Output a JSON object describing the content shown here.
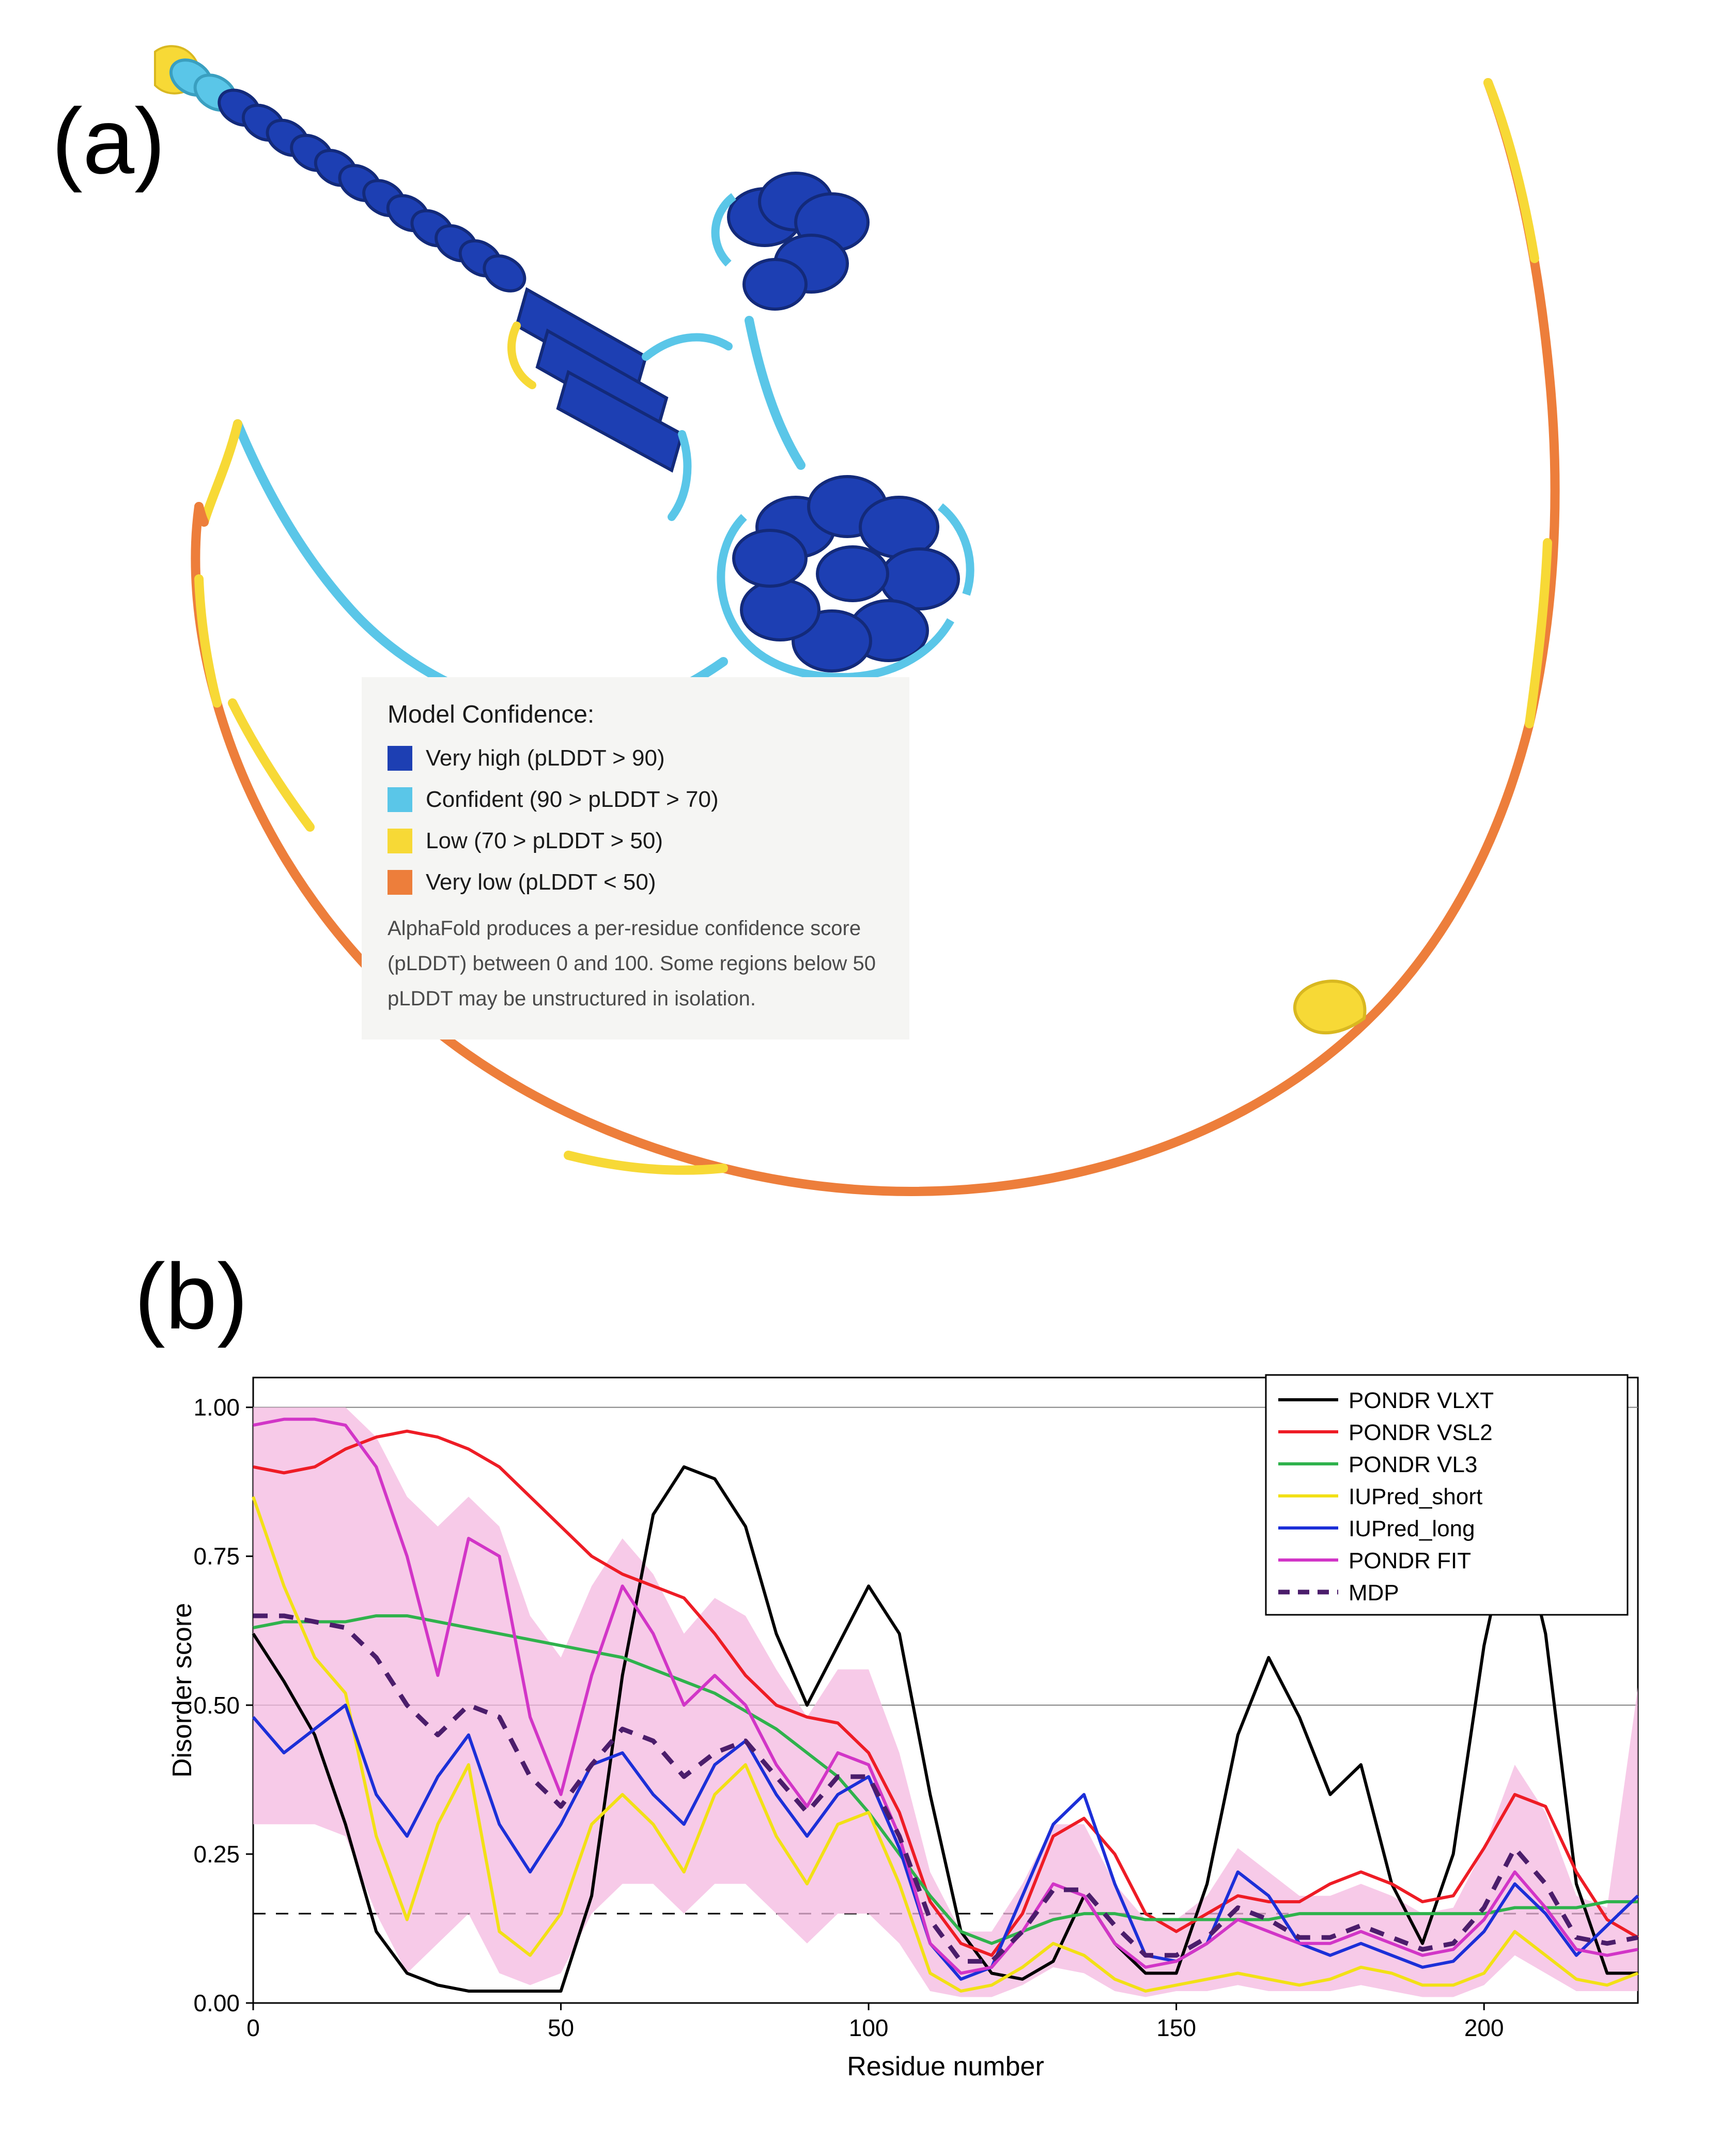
{
  "panel_a": {
    "label": "(a)",
    "legend": {
      "title": "Model Confidence:",
      "items": [
        {
          "color": "#1d3fb3",
          "text": "Very high (pLDDT > 90)"
        },
        {
          "color": "#5ac6e8",
          "text": "Confident (90 > pLDDT > 70)"
        },
        {
          "color": "#f7d936",
          "text": "Low (70 > pLDDT > 50)"
        },
        {
          "color": "#ed7e3b",
          "text": "Very low (pLDDT < 50)"
        }
      ],
      "description": "AlphaFold produces a per-residue confidence score (pLDDT) between 0 and 100. Some regions below 50 pLDDT may be unstructured in isolation."
    },
    "structure_colors": {
      "very_high": "#1d3fb3",
      "confident": "#5ac6e8",
      "low": "#f7d936",
      "very_low": "#ed7e3b"
    }
  },
  "panel_b": {
    "label": "(b)",
    "chart": {
      "type": "line",
      "xlabel": "Residue number",
      "ylabel": "Disorder score",
      "xlim": [
        0,
        225
      ],
      "ylim": [
        0,
        1.05
      ],
      "xtick_step": 50,
      "xticks": [
        0,
        50,
        100,
        150,
        200
      ],
      "yticks": [
        0.0,
        0.25,
        0.5,
        0.75,
        1.0
      ],
      "grid_y": [
        0.5,
        1.0
      ],
      "dashed_threshold": 0.15,
      "background_color": "#ffffff",
      "axis_color": "#000000",
      "grid_color": "#808080",
      "band_color": "#f4b8e0",
      "band_opacity": 0.75,
      "label_fontsize": 52,
      "tick_fontsize": 46,
      "legend_fontsize": 44,
      "line_width": 6,
      "dash_width": 9,
      "series": [
        {
          "name": "PONDR VLXT",
          "color": "#000000",
          "style": "solid"
        },
        {
          "name": "PONDR VSL2",
          "color": "#ee1c25",
          "style": "solid"
        },
        {
          "name": "PONDR VL3",
          "color": "#2fb24c",
          "style": "solid"
        },
        {
          "name": "IUPred_short",
          "color": "#f2e016",
          "style": "solid"
        },
        {
          "name": "IUPred_long",
          "color": "#1c2fd8",
          "style": "solid"
        },
        {
          "name": "PONDR FIT",
          "color": "#d235c7",
          "style": "solid"
        },
        {
          "name": "MDP",
          "color": "#4b1d6b",
          "style": "dash"
        }
      ],
      "data": {
        "x": [
          0,
          5,
          10,
          15,
          20,
          25,
          30,
          35,
          40,
          45,
          50,
          55,
          60,
          65,
          70,
          75,
          80,
          85,
          90,
          95,
          100,
          105,
          110,
          115,
          120,
          125,
          130,
          135,
          140,
          145,
          150,
          155,
          160,
          165,
          170,
          175,
          180,
          185,
          190,
          195,
          200,
          205,
          210,
          215,
          220,
          225
        ],
        "PONDR_VLXT": [
          0.62,
          0.54,
          0.45,
          0.3,
          0.12,
          0.05,
          0.03,
          0.02,
          0.02,
          0.02,
          0.02,
          0.18,
          0.55,
          0.82,
          0.9,
          0.88,
          0.8,
          0.62,
          0.5,
          0.6,
          0.7,
          0.62,
          0.35,
          0.12,
          0.05,
          0.04,
          0.07,
          0.18,
          0.1,
          0.05,
          0.05,
          0.2,
          0.45,
          0.58,
          0.48,
          0.35,
          0.4,
          0.2,
          0.1,
          0.25,
          0.6,
          0.84,
          0.62,
          0.2,
          0.05,
          0.05
        ],
        "PONDR_VSL2": [
          0.9,
          0.89,
          0.9,
          0.93,
          0.95,
          0.96,
          0.95,
          0.93,
          0.9,
          0.85,
          0.8,
          0.75,
          0.72,
          0.7,
          0.68,
          0.62,
          0.55,
          0.5,
          0.48,
          0.47,
          0.42,
          0.32,
          0.17,
          0.1,
          0.08,
          0.15,
          0.28,
          0.31,
          0.25,
          0.15,
          0.12,
          0.15,
          0.18,
          0.17,
          0.17,
          0.2,
          0.22,
          0.2,
          0.17,
          0.18,
          0.26,
          0.35,
          0.33,
          0.22,
          0.14,
          0.11
        ],
        "PONDR_VL3": [
          0.63,
          0.64,
          0.64,
          0.64,
          0.65,
          0.65,
          0.64,
          0.63,
          0.62,
          0.61,
          0.6,
          0.59,
          0.58,
          0.56,
          0.54,
          0.52,
          0.49,
          0.46,
          0.42,
          0.38,
          0.32,
          0.25,
          0.18,
          0.12,
          0.1,
          0.12,
          0.14,
          0.15,
          0.15,
          0.14,
          0.14,
          0.14,
          0.14,
          0.14,
          0.15,
          0.15,
          0.15,
          0.15,
          0.15,
          0.15,
          0.15,
          0.16,
          0.16,
          0.16,
          0.17,
          0.17
        ],
        "IUPred_short": [
          0.85,
          0.7,
          0.58,
          0.52,
          0.28,
          0.14,
          0.3,
          0.4,
          0.12,
          0.08,
          0.15,
          0.3,
          0.35,
          0.3,
          0.22,
          0.35,
          0.4,
          0.28,
          0.2,
          0.3,
          0.32,
          0.2,
          0.05,
          0.02,
          0.03,
          0.06,
          0.1,
          0.08,
          0.04,
          0.02,
          0.03,
          0.04,
          0.05,
          0.04,
          0.03,
          0.04,
          0.06,
          0.05,
          0.03,
          0.03,
          0.05,
          0.12,
          0.08,
          0.04,
          0.03,
          0.05
        ],
        "IUPred_long": [
          0.48,
          0.42,
          0.46,
          0.5,
          0.35,
          0.28,
          0.38,
          0.45,
          0.3,
          0.22,
          0.3,
          0.4,
          0.42,
          0.35,
          0.3,
          0.4,
          0.44,
          0.35,
          0.28,
          0.35,
          0.38,
          0.26,
          0.1,
          0.04,
          0.06,
          0.18,
          0.3,
          0.35,
          0.2,
          0.08,
          0.07,
          0.1,
          0.22,
          0.18,
          0.1,
          0.08,
          0.1,
          0.08,
          0.06,
          0.07,
          0.12,
          0.2,
          0.15,
          0.08,
          0.13,
          0.18
        ],
        "PONDR_FIT": [
          0.97,
          0.98,
          0.98,
          0.97,
          0.9,
          0.75,
          0.55,
          0.78,
          0.75,
          0.48,
          0.35,
          0.55,
          0.7,
          0.62,
          0.5,
          0.55,
          0.5,
          0.4,
          0.33,
          0.42,
          0.4,
          0.28,
          0.1,
          0.05,
          0.06,
          0.12,
          0.2,
          0.18,
          0.1,
          0.06,
          0.07,
          0.1,
          0.14,
          0.12,
          0.1,
          0.1,
          0.12,
          0.1,
          0.08,
          0.09,
          0.14,
          0.22,
          0.16,
          0.09,
          0.08,
          0.09
        ],
        "MDP": [
          0.65,
          0.65,
          0.64,
          0.63,
          0.58,
          0.5,
          0.45,
          0.5,
          0.48,
          0.38,
          0.33,
          0.4,
          0.46,
          0.44,
          0.38,
          0.42,
          0.44,
          0.38,
          0.32,
          0.38,
          0.38,
          0.28,
          0.14,
          0.07,
          0.07,
          0.12,
          0.19,
          0.19,
          0.13,
          0.08,
          0.08,
          0.11,
          0.16,
          0.14,
          0.11,
          0.11,
          0.13,
          0.11,
          0.09,
          0.1,
          0.16,
          0.26,
          0.2,
          0.11,
          0.1,
          0.11
        ],
        "band_lower": [
          0.3,
          0.3,
          0.3,
          0.28,
          0.15,
          0.05,
          0.1,
          0.15,
          0.05,
          0.03,
          0.05,
          0.15,
          0.2,
          0.2,
          0.15,
          0.2,
          0.2,
          0.15,
          0.1,
          0.15,
          0.15,
          0.1,
          0.02,
          0.01,
          0.01,
          0.03,
          0.06,
          0.05,
          0.02,
          0.01,
          0.02,
          0.02,
          0.03,
          0.02,
          0.02,
          0.02,
          0.03,
          0.02,
          0.01,
          0.01,
          0.03,
          0.08,
          0.05,
          0.02,
          0.02,
          0.02
        ],
        "band_upper": [
          1.0,
          1.0,
          1.0,
          1.0,
          0.95,
          0.85,
          0.8,
          0.85,
          0.8,
          0.65,
          0.58,
          0.7,
          0.78,
          0.72,
          0.62,
          0.68,
          0.65,
          0.56,
          0.48,
          0.56,
          0.56,
          0.42,
          0.22,
          0.12,
          0.12,
          0.2,
          0.3,
          0.3,
          0.2,
          0.14,
          0.14,
          0.18,
          0.26,
          0.22,
          0.18,
          0.18,
          0.2,
          0.18,
          0.15,
          0.16,
          0.26,
          0.4,
          0.32,
          0.18,
          0.16,
          0.53
        ]
      }
    }
  }
}
